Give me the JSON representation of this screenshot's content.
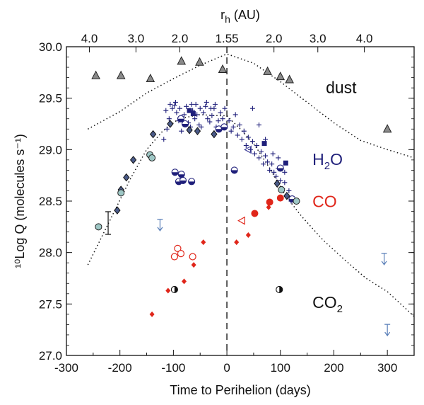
{
  "chart_data": {
    "type": "scatter",
    "xlabel": "Time to Perihelion (days)",
    "ylabel": "¹⁰Log Q (molecules s⁻¹)",
    "top_label": "r_h (AU)",
    "xlim": [
      -300,
      350
    ],
    "ylim": [
      27.0,
      30.0
    ],
    "x_ticks": [
      -300,
      -200,
      -100,
      0,
      100,
      200,
      300
    ],
    "y_ticks": [
      27.0,
      27.5,
      28.0,
      28.5,
      29.0,
      29.5,
      30.0
    ],
    "top_ticks": [
      {
        "day": -257,
        "label": "4.0"
      },
      {
        "day": -170,
        "label": "3.0"
      },
      {
        "day": -88,
        "label": "2.0"
      },
      {
        "day": 0,
        "label": "1.55"
      },
      {
        "day": 88,
        "label": "2.0"
      },
      {
        "day": 170,
        "label": "3.0"
      },
      {
        "day": 257,
        "label": "4.0"
      }
    ],
    "perihelion_line": 0,
    "annotations": [
      {
        "text": "dust",
        "color": "#111111",
        "x": 185,
        "y": 29.55
      },
      {
        "text": "H",
        "sub": "2",
        "text2": "O",
        "color": "#1f1f7a",
        "x": 160,
        "y": 28.85
      },
      {
        "text": "CO",
        "color": "#e0261a",
        "x": 160,
        "y": 28.44
      },
      {
        "text": "CO",
        "sub": "2",
        "color": "#111111",
        "x": 160,
        "y": 27.46
      }
    ],
    "series": [
      {
        "name": "dust",
        "marker": "triangle",
        "color": "#6a6a6a",
        "points": [
          [
            -245,
            29.72
          ],
          [
            -198,
            29.72
          ],
          [
            -143,
            29.69
          ],
          [
            -85,
            29.86
          ],
          [
            -51,
            29.85
          ],
          [
            -8,
            29.78
          ],
          [
            76,
            29.76
          ],
          [
            100,
            29.71
          ],
          [
            117,
            29.68
          ],
          [
            300,
            29.2
          ]
        ]
      },
      {
        "name": "dust model",
        "marker": "dotted-line",
        "color": "#111111",
        "curve": [
          [
            -260,
            29.2
          ],
          [
            -200,
            29.37
          ],
          [
            -150,
            29.55
          ],
          [
            -100,
            29.69
          ],
          [
            -50,
            29.82
          ],
          [
            0,
            29.93
          ],
          [
            50,
            29.84
          ],
          [
            100,
            29.66
          ],
          [
            150,
            29.46
          ],
          [
            200,
            29.26
          ],
          [
            250,
            29.09
          ],
          [
            300,
            29.0
          ],
          [
            350,
            28.92
          ]
        ]
      },
      {
        "name": "H2O model",
        "marker": "dotted-line",
        "color": "#111111",
        "curve": [
          [
            -260,
            27.88
          ],
          [
            -220,
            28.3
          ],
          [
            -180,
            28.72
          ],
          [
            -150,
            29.0
          ],
          [
            -120,
            29.18
          ],
          [
            -90,
            29.3
          ],
          [
            -50,
            29.34
          ],
          [
            -15,
            29.33
          ],
          [
            0,
            29.33
          ],
          [
            25,
            29.2
          ],
          [
            50,
            29.06
          ],
          [
            80,
            28.82
          ],
          [
            110,
            28.55
          ],
          [
            140,
            28.35
          ],
          [
            180,
            28.12
          ],
          [
            220,
            27.93
          ],
          [
            260,
            27.75
          ],
          [
            300,
            27.62
          ],
          [
            350,
            27.38
          ]
        ]
      },
      {
        "name": "H2O crosses",
        "marker": "plus",
        "color": "#1f1f7a",
        "points": [
          [
            -118,
            29.1
          ],
          [
            -112,
            29.2
          ],
          [
            -108,
            29.3
          ],
          [
            -102,
            29.4
          ],
          [
            -98,
            29.43
          ],
          [
            -94,
            29.36
          ],
          [
            -90,
            29.28
          ],
          [
            -85,
            29.18
          ],
          [
            -80,
            29.34
          ],
          [
            -76,
            29.42
          ],
          [
            -72,
            29.26
          ],
          [
            -68,
            29.22
          ],
          [
            -64,
            29.38
          ],
          [
            -60,
            29.3
          ],
          [
            -56,
            29.34
          ],
          [
            -52,
            29.24
          ],
          [
            -48,
            29.22
          ],
          [
            -44,
            29.36
          ],
          [
            -40,
            29.42
          ],
          [
            -36,
            29.3
          ],
          [
            -32,
            29.27
          ],
          [
            -28,
            29.33
          ],
          [
            -24,
            29.4
          ],
          [
            -20,
            29.22
          ],
          [
            -16,
            29.28
          ],
          [
            -12,
            29.36
          ],
          [
            -8,
            29.3
          ],
          [
            -4,
            29.4
          ],
          [
            -114,
            29.38
          ],
          [
            -106,
            29.44
          ],
          [
            -96,
            29.46
          ],
          [
            -88,
            29.4
          ],
          [
            -66,
            29.44
          ],
          [
            -58,
            29.44
          ],
          [
            -50,
            29.4
          ],
          [
            -38,
            29.46
          ],
          [
            -30,
            29.4
          ],
          [
            -22,
            29.44
          ],
          [
            4,
            29.28
          ],
          [
            8,
            29.18
          ],
          [
            12,
            29.22
          ],
          [
            16,
            29.34
          ],
          [
            20,
            29.14
          ],
          [
            24,
            29.24
          ],
          [
            28,
            29.1
          ],
          [
            32,
            29.18
          ],
          [
            36,
            29.04
          ],
          [
            40,
            29.12
          ],
          [
            44,
            29.0
          ],
          [
            48,
            29.08
          ],
          [
            52,
            28.96
          ],
          [
            56,
            29.04
          ],
          [
            60,
            28.92
          ],
          [
            64,
            28.98
          ],
          [
            68,
            28.86
          ],
          [
            72,
            28.94
          ],
          [
            76,
            28.88
          ],
          [
            80,
            28.8
          ],
          [
            84,
            28.86
          ],
          [
            88,
            28.78
          ],
          [
            92,
            28.74
          ],
          [
            96,
            28.82
          ],
          [
            100,
            28.7
          ],
          [
            104,
            28.62
          ],
          [
            108,
            28.68
          ],
          [
            112,
            28.56
          ],
          [
            116,
            28.6
          ],
          [
            120,
            28.5
          ],
          [
            48,
            29.4
          ],
          [
            60,
            29.24
          ],
          [
            72,
            29.1
          ],
          [
            86,
            28.96
          ],
          [
            96,
            28.92
          ],
          [
            108,
            28.78
          ]
        ]
      },
      {
        "name": "H2O circles",
        "marker": "circle-open",
        "color": "#1f1f7a",
        "points": [
          [
            -86,
            29.3
          ],
          [
            -78,
            29.25
          ],
          [
            -15,
            29.2
          ],
          [
            -5,
            29.22
          ],
          [
            14,
            28.8
          ],
          [
            100,
            28.82
          ],
          [
            122,
            28.52
          ],
          [
            -97,
            28.78
          ],
          [
            -90,
            28.69
          ],
          [
            -85,
            28.76
          ],
          [
            -82,
            28.7
          ],
          [
            -66,
            28.69
          ]
        ]
      },
      {
        "name": "H2O diamonds",
        "marker": "diamond",
        "color": "#4a5a88",
        "points": [
          [
            -205,
            28.41
          ],
          [
            -198,
            28.61
          ],
          [
            -188,
            28.73
          ],
          [
            -175,
            28.9
          ],
          [
            -138,
            29.15
          ],
          [
            -106,
            29.25
          ],
          [
            -70,
            29.19
          ],
          [
            -55,
            29.18
          ],
          [
            -24,
            29.15
          ],
          [
            94,
            28.67
          ],
          [
            112,
            28.55
          ]
        ]
      },
      {
        "name": "H2O squares",
        "marker": "square",
        "color": "#1f1f7a",
        "points": [
          [
            -70,
            29.38
          ],
          [
            -63,
            29.35
          ],
          [
            70,
            29.06
          ],
          [
            110,
            28.87
          ]
        ]
      },
      {
        "name": "H2O teal circles",
        "marker": "circle-teal",
        "color": "#9ec7c5",
        "points": [
          [
            -240,
            28.25
          ],
          [
            -198,
            28.58
          ],
          [
            -144,
            28.95
          ],
          [
            -140,
            28.92
          ],
          [
            102,
            28.61
          ],
          [
            130,
            28.5
          ]
        ]
      },
      {
        "name": "H2O left triangles",
        "marker": "triangle-left",
        "color": "#4a4aa0",
        "points": [
          [
            40,
            29.0
          ]
        ]
      },
      {
        "name": "CO filled",
        "marker": "diamond-red",
        "color": "#e0261a",
        "points": [
          [
            -140,
            27.4
          ],
          [
            -110,
            27.63
          ],
          [
            -80,
            27.72
          ],
          [
            -62,
            27.88
          ],
          [
            -44,
            28.1
          ],
          [
            18,
            28.1
          ],
          [
            40,
            28.17
          ],
          [
            78,
            28.44
          ]
        ]
      },
      {
        "name": "CO open",
        "marker": "circle-red-open",
        "color": "#e0261a",
        "points": [
          [
            -98,
            27.96
          ],
          [
            -92,
            28.04
          ],
          [
            -86,
            27.99
          ],
          [
            -64,
            27.96
          ]
        ]
      },
      {
        "name": "CO other",
        "marker": "circle-red-filled",
        "color": "#e0261a",
        "points": [
          [
            52,
            28.38
          ],
          [
            80,
            28.49
          ],
          [
            100,
            28.53
          ]
        ]
      },
      {
        "name": "CO left triangle",
        "marker": "triangle-left-red",
        "color": "#e0261a",
        "points": [
          [
            28,
            28.31
          ]
        ]
      },
      {
        "name": "CO2",
        "marker": "circle-half",
        "color": "#111111",
        "points": [
          [
            -98,
            27.64
          ],
          [
            98,
            27.64
          ]
        ]
      },
      {
        "name": "upper limits",
        "marker": "arrow-down",
        "color": "#5a7fb8",
        "points": [
          [
            -125,
            28.26
          ],
          [
            294,
            27.93
          ],
          [
            300,
            27.24
          ]
        ]
      },
      {
        "name": "error bar",
        "marker": "errorbar",
        "color": "#111111",
        "points": [
          [
            -222,
            28.28
          ]
        ]
      }
    ]
  }
}
